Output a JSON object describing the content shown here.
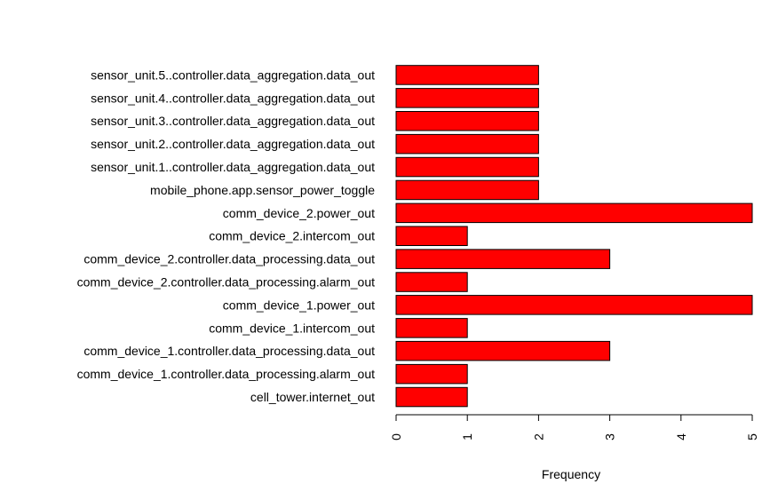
{
  "chart_data": {
    "type": "bar",
    "orientation": "horizontal",
    "xlabel": "Frequency",
    "ylabel": "",
    "xlim": [
      0,
      5
    ],
    "x_ticks": [
      0,
      1,
      2,
      3,
      4,
      5
    ],
    "grid": false,
    "bar_color": "#ff0000",
    "categories": [
      "cell_tower.internet_out",
      "comm_device_1.controller.data_processing.alarm_out",
      "comm_device_1.controller.data_processing.data_out",
      "comm_device_1.intercom_out",
      "comm_device_1.power_out",
      "comm_device_2.controller.data_processing.alarm_out",
      "comm_device_2.controller.data_processing.data_out",
      "comm_device_2.intercom_out",
      "comm_device_2.power_out",
      "mobile_phone.app.sensor_power_toggle",
      "sensor_unit.1..controller.data_aggregation.data_out",
      "sensor_unit.2..controller.data_aggregation.data_out",
      "sensor_unit.3..controller.data_aggregation.data_out",
      "sensor_unit.4..controller.data_aggregation.data_out",
      "sensor_unit.5..controller.data_aggregation.data_out"
    ],
    "values": [
      1,
      1,
      3,
      1,
      5,
      1,
      3,
      1,
      5,
      2,
      2,
      2,
      2,
      2,
      2
    ]
  }
}
